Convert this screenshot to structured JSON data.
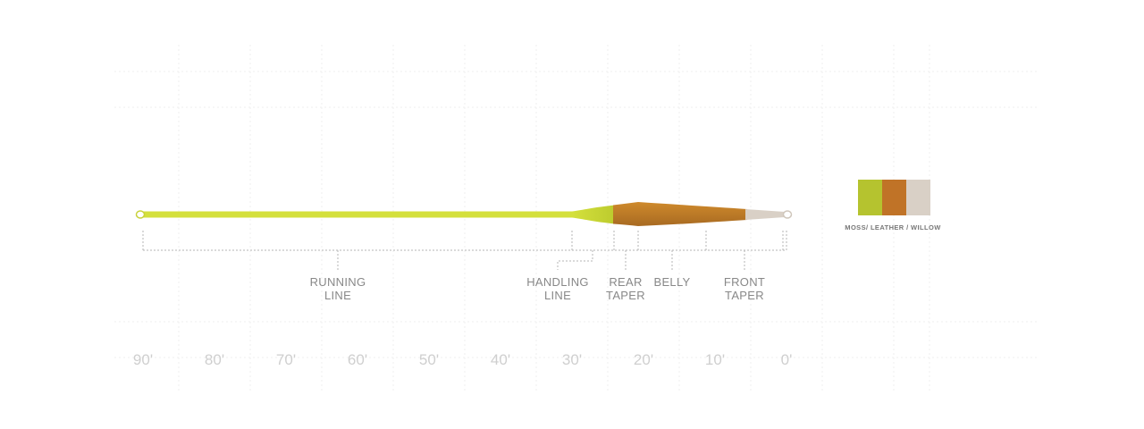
{
  "segments": [
    {
      "id": "running-line",
      "lines": [
        "RUNNING",
        "LINE"
      ]
    },
    {
      "id": "handling-line",
      "lines": [
        "HANDLING",
        "LINE"
      ]
    },
    {
      "id": "rear-taper",
      "lines": [
        "REAR",
        "TAPER"
      ]
    },
    {
      "id": "belly",
      "lines": [
        "BELLY"
      ]
    },
    {
      "id": "front-taper",
      "lines": [
        "FRONT",
        "TAPER"
      ]
    }
  ],
  "axis_ticks": [
    "90'",
    "80'",
    "70'",
    "60'",
    "50'",
    "40'",
    "30'",
    "20'",
    "10'",
    "0'"
  ],
  "colors": {
    "moss": "#b5c32f",
    "leather": "#c07327",
    "willow": "#d9d0c6",
    "running_line": "#d4e03c",
    "grid": "#ececec",
    "bracket": "#b8b8b8"
  },
  "legend": {
    "swatches": [
      "moss",
      "leather",
      "willow"
    ],
    "label": "MOSS/ LEATHER / WILLOW"
  }
}
